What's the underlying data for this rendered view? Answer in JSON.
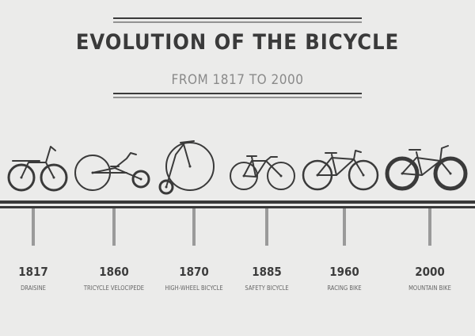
{
  "title": "EVOLUTION OF THE BICYCLE",
  "subtitle": "FROM 1817 TO 2000",
  "items": [
    {
      "year": "1817",
      "label": "DRAISINE"
    },
    {
      "year": "1860",
      "label": "TRICYCLE  VELOCIPEDE"
    },
    {
      "year": "1870",
      "label": "HIGH-WHEEL BICYCLE"
    },
    {
      "year": "1885",
      "label": "SAFETY BICYCLE"
    },
    {
      "year": "1960",
      "label": "RACING BIKE"
    },
    {
      "year": "2000",
      "label": "MOUNTAIN BIKE"
    }
  ]
}
